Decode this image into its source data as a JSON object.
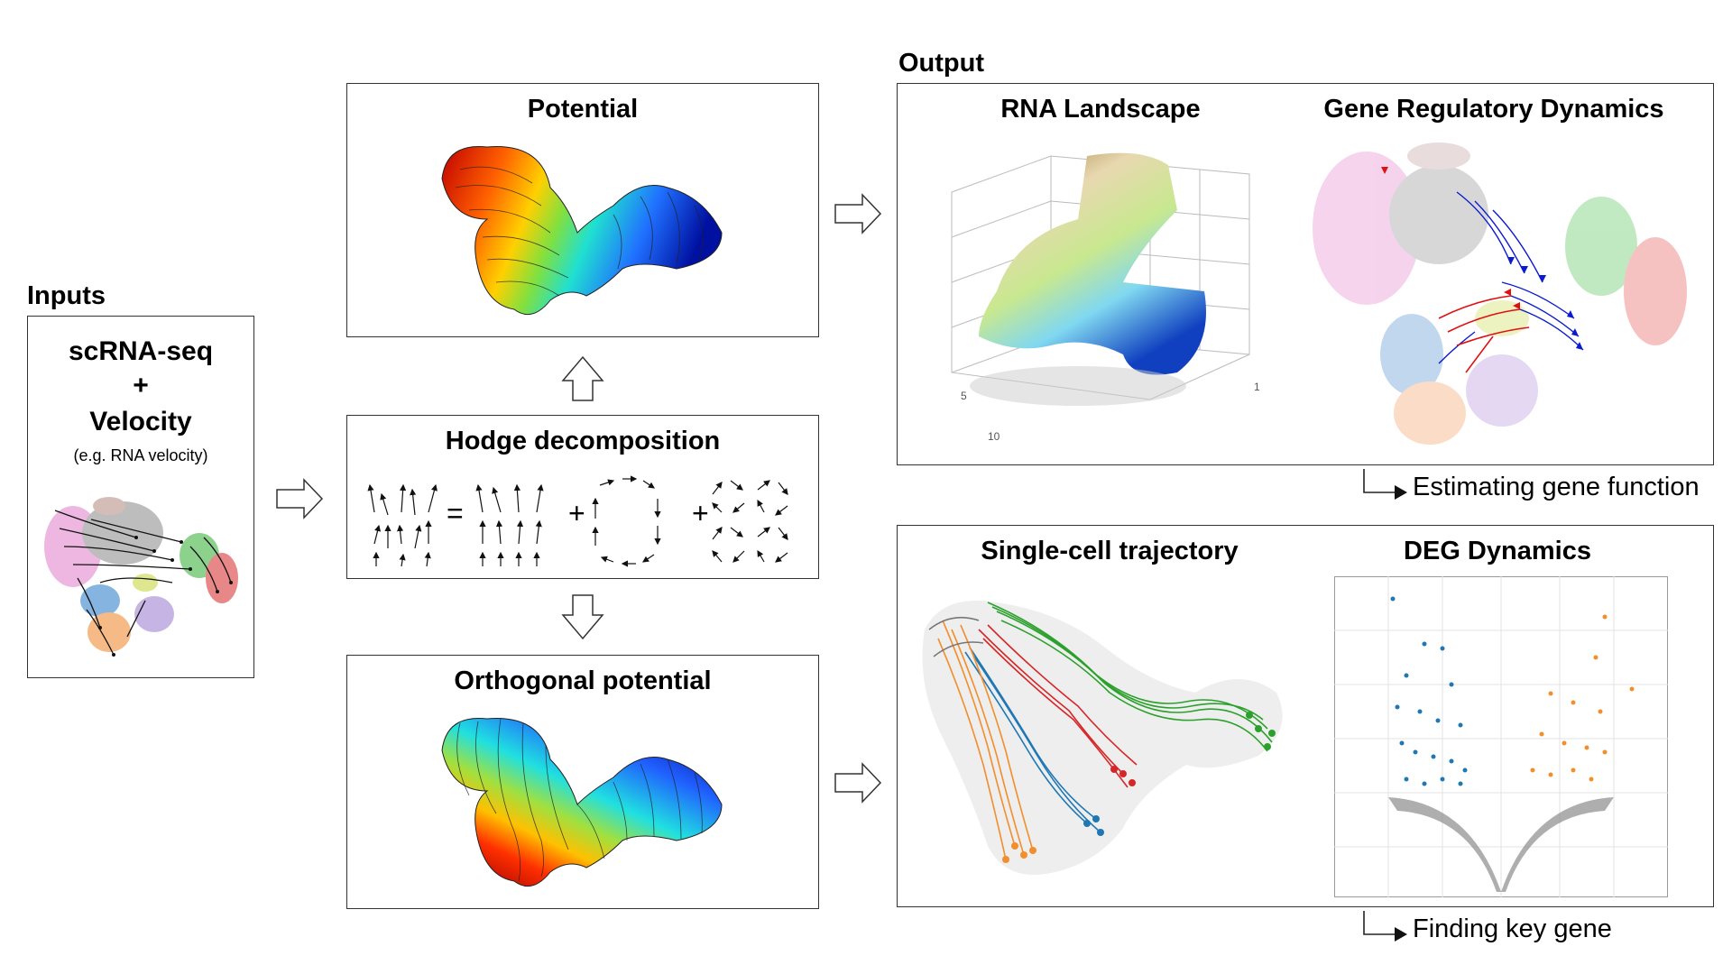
{
  "inputs": {
    "header": "Inputs",
    "line1": "scRNA-seq",
    "plus": "+",
    "line2": "Velocity",
    "note": "(e.g. RNA velocity)"
  },
  "middle": {
    "potential_title": "Potential",
    "hodge_title": "Hodge decomposition",
    "equation_equals": "=",
    "equation_plus1": "+",
    "equation_plus2": "+",
    "orthogonal_title": "Orthogonal potential"
  },
  "output": {
    "header": "Output",
    "rna_landscape": "RNA Landscape",
    "grn_dynamics": "Gene Regulatory Dynamics",
    "callout_top": "Estimating gene function",
    "trajectory": "Single-cell trajectory",
    "deg": "DEG Dynamics",
    "callout_bottom": "Finding key gene",
    "axis_ticks": [
      "5",
      "10",
      "1"
    ]
  },
  "colors": {
    "orange": "#f28e2b",
    "blue": "#1f77b4",
    "green": "#2ca02c",
    "red": "#d62728",
    "grey": "#8c8c8c",
    "pink": "#e8a0d8",
    "purple": "#b39ddb"
  }
}
